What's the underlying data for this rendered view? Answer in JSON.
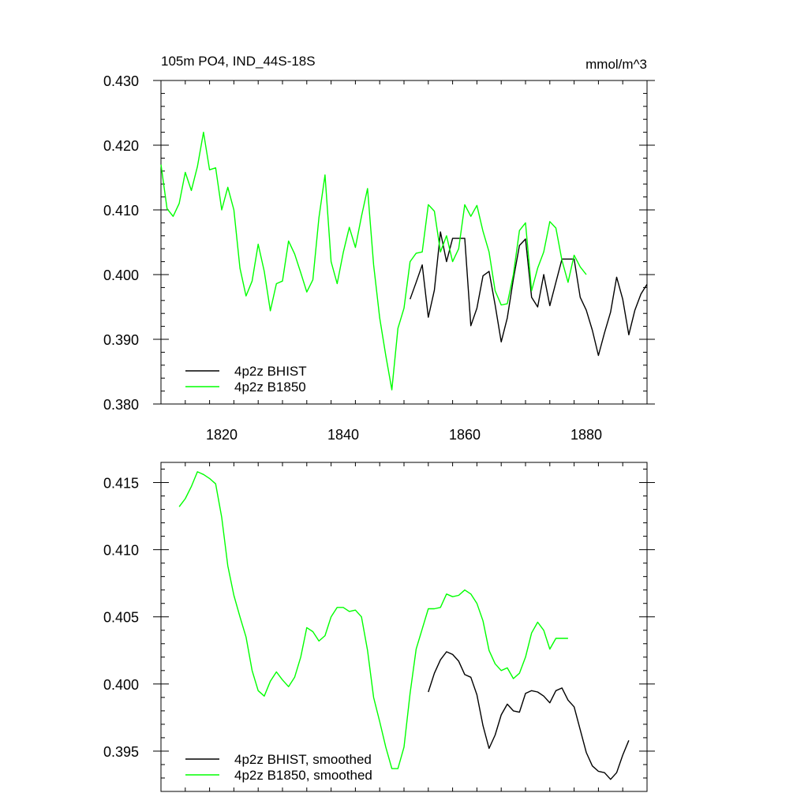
{
  "chart_data": [
    {
      "type": "line",
      "title": "105m PO4, IND_44S-18S",
      "units": "mmol/m^3",
      "xlim": [
        1810,
        1890
      ],
      "ylim": [
        0.38,
        0.43
      ],
      "x_ticks": [
        1820,
        1840,
        1860,
        1880
      ],
      "y_ticks": [
        0.38,
        0.39,
        0.4,
        0.41,
        0.42,
        0.43
      ],
      "y_tick_labels": [
        "0.380",
        "0.390",
        "0.400",
        "0.410",
        "0.420",
        "0.430"
      ],
      "legend_position": "bottom-left",
      "series": [
        {
          "name": "4p2z BHIST",
          "color": "#000000",
          "x": [
            1851,
            1852,
            1853,
            1854,
            1855,
            1856,
            1857,
            1858,
            1859,
            1860,
            1861,
            1862,
            1863,
            1864,
            1865,
            1866,
            1867,
            1868,
            1869,
            1870,
            1871,
            1872,
            1873,
            1874,
            1875,
            1876,
            1877,
            1878,
            1879,
            1880,
            1881,
            1882,
            1883,
            1884,
            1885,
            1886,
            1887,
            1888,
            1889,
            1890
          ],
          "y": [
            0.3962,
            0.3988,
            0.4015,
            0.3934,
            0.3976,
            0.4066,
            0.402,
            0.4056,
            0.4056,
            0.4056,
            0.3921,
            0.3948,
            0.3998,
            0.4005,
            0.3953,
            0.3896,
            0.3933,
            0.3993,
            0.4045,
            0.4055,
            0.3965,
            0.395,
            0.4,
            0.3952,
            0.3988,
            0.4024,
            0.4024,
            0.4024,
            0.3965,
            0.3945,
            0.3914,
            0.3875,
            0.391,
            0.3942,
            0.3996,
            0.3962,
            0.3907,
            0.3945,
            0.397,
            0.3985
          ]
        },
        {
          "name": "4p2z B1850",
          "color": "#00ff00",
          "x": [
            1810,
            1811,
            1812,
            1813,
            1814,
            1815,
            1816,
            1817,
            1818,
            1819,
            1820,
            1821,
            1822,
            1823,
            1824,
            1825,
            1826,
            1827,
            1828,
            1829,
            1830,
            1831,
            1832,
            1833,
            1834,
            1835,
            1836,
            1837,
            1838,
            1839,
            1840,
            1841,
            1842,
            1843,
            1844,
            1845,
            1846,
            1847,
            1848,
            1849,
            1850,
            1851,
            1852,
            1853,
            1854,
            1855,
            1856,
            1857,
            1858,
            1859,
            1860,
            1861,
            1862,
            1863,
            1864,
            1865,
            1866,
            1867,
            1868,
            1869,
            1870,
            1871,
            1872,
            1873,
            1874,
            1875,
            1876,
            1877,
            1878,
            1879,
            1880
          ],
          "y": [
            0.417,
            0.4102,
            0.409,
            0.411,
            0.4158,
            0.413,
            0.4167,
            0.422,
            0.4162,
            0.4165,
            0.41,
            0.4135,
            0.41,
            0.401,
            0.3967,
            0.399,
            0.4047,
            0.4005,
            0.3944,
            0.3986,
            0.399,
            0.4052,
            0.4032,
            0.4003,
            0.3973,
            0.3992,
            0.4088,
            0.4154,
            0.402,
            0.3986,
            0.4034,
            0.4073,
            0.4042,
            0.409,
            0.4133,
            0.4015,
            0.3933,
            0.3875,
            0.3822,
            0.3917,
            0.3948,
            0.402,
            0.4033,
            0.4035,
            0.4108,
            0.4098,
            0.4035,
            0.406,
            0.402,
            0.404,
            0.4108,
            0.409,
            0.4107,
            0.4067,
            0.4035,
            0.3975,
            0.3953,
            0.3955,
            0.4,
            0.4068,
            0.408,
            0.3975,
            0.401,
            0.4035,
            0.4082,
            0.4072,
            0.4022,
            0.3988,
            0.403,
            0.4012,
            0.4
          ]
        }
      ]
    },
    {
      "type": "line",
      "xlim": [
        1810,
        1890
      ],
      "ylim": [
        0.392,
        0.4165
      ],
      "x_ticks": [
        1820,
        1840,
        1860,
        1880
      ],
      "y_ticks": [
        0.395,
        0.4,
        0.405,
        0.41,
        0.415
      ],
      "y_tick_labels": [
        "0.395",
        "0.400",
        "0.405",
        "0.410",
        "0.415"
      ],
      "legend_position": "bottom-left",
      "series": [
        {
          "name": "4p2z BHIST, smoothed",
          "color": "#000000",
          "x": [
            1854,
            1855,
            1856,
            1857,
            1858,
            1859,
            1860,
            1861,
            1862,
            1863,
            1864,
            1865,
            1866,
            1867,
            1868,
            1869,
            1870,
            1871,
            1872,
            1873,
            1874,
            1875,
            1876,
            1877,
            1878,
            1879,
            1880,
            1881,
            1882,
            1883,
            1884,
            1885,
            1886,
            1887
          ],
          "y": [
            0.3994,
            0.4008,
            0.4018,
            0.4024,
            0.4022,
            0.4017,
            0.4007,
            0.4005,
            0.3992,
            0.3969,
            0.3952,
            0.3962,
            0.3977,
            0.3985,
            0.398,
            0.3979,
            0.3993,
            0.3995,
            0.3994,
            0.3991,
            0.3986,
            0.3995,
            0.3997,
            0.3988,
            0.3983,
            0.3966,
            0.3949,
            0.3939,
            0.3935,
            0.3934,
            0.3929,
            0.3934,
            0.3947,
            0.3958
          ]
        },
        {
          "name": "4p2z B1850, smoothed",
          "color": "#00ff00",
          "x": [
            1813,
            1814,
            1815,
            1816,
            1817,
            1818,
            1819,
            1820,
            1821,
            1822,
            1823,
            1824,
            1825,
            1826,
            1827,
            1828,
            1829,
            1830,
            1831,
            1832,
            1833,
            1834,
            1835,
            1836,
            1837,
            1838,
            1839,
            1840,
            1841,
            1842,
            1843,
            1844,
            1845,
            1846,
            1847,
            1848,
            1849,
            1850,
            1851,
            1852,
            1853,
            1854,
            1855,
            1856,
            1857,
            1858,
            1859,
            1860,
            1861,
            1862,
            1863,
            1864,
            1865,
            1866,
            1867,
            1868,
            1869,
            1870,
            1871,
            1872,
            1873,
            1874,
            1875,
            1876,
            1877
          ],
          "y": [
            0.4132,
            0.4138,
            0.4147,
            0.4158,
            0.4156,
            0.4153,
            0.4149,
            0.4124,
            0.4088,
            0.4066,
            0.405,
            0.4035,
            0.401,
            0.3995,
            0.3991,
            0.4002,
            0.4009,
            0.4003,
            0.3998,
            0.4005,
            0.402,
            0.4042,
            0.4039,
            0.4032,
            0.4036,
            0.405,
            0.4057,
            0.4057,
            0.4054,
            0.4055,
            0.405,
            0.4025,
            0.399,
            0.3972,
            0.3953,
            0.3937,
            0.3937,
            0.3953,
            0.3993,
            0.4026,
            0.4041,
            0.4056,
            0.4056,
            0.4057,
            0.4067,
            0.4065,
            0.4066,
            0.407,
            0.4067,
            0.406,
            0.4047,
            0.4025,
            0.4015,
            0.401,
            0.4012,
            0.4004,
            0.4008,
            0.402,
            0.4038,
            0.4046,
            0.404,
            0.4026,
            0.4034,
            0.4034,
            0.4034
          ]
        }
      ]
    }
  ]
}
